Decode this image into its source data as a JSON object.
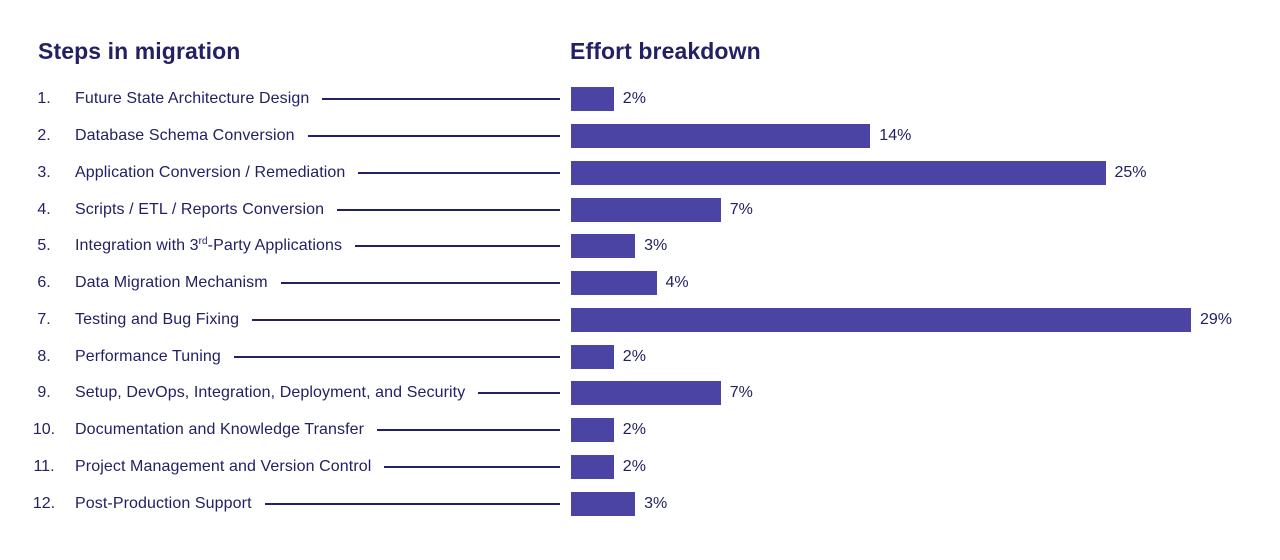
{
  "left_header": "Steps in migration",
  "right_header": "Effort breakdown",
  "colors": {
    "ink": "#232063",
    "bar": "#4C44A5",
    "background": "#FFFFFF"
  },
  "steps": [
    {
      "num": "1.",
      "pre": "Future State Architecture Design",
      "sup": "",
      "post": ""
    },
    {
      "num": "2.",
      "pre": "Database Schema Conversion",
      "sup": "",
      "post": ""
    },
    {
      "num": "3.",
      "pre": "Application Conversion / Remediation",
      "sup": "",
      "post": ""
    },
    {
      "num": "4.",
      "pre": "Scripts / ETL / Reports Conversion",
      "sup": "",
      "post": ""
    },
    {
      "num": "5.",
      "pre": "Integration with 3",
      "sup": "rd",
      "post": "-Party Applications"
    },
    {
      "num": "6.",
      "pre": "Data Migration Mechanism",
      "sup": "",
      "post": ""
    },
    {
      "num": "7.",
      "pre": "Testing and Bug Fixing",
      "sup": "",
      "post": ""
    },
    {
      "num": "8.",
      "pre": "Performance Tuning",
      "sup": "",
      "post": ""
    },
    {
      "num": "9.",
      "pre": "Setup, DevOps, Integration, Deployment, and Security",
      "sup": "",
      "post": ""
    },
    {
      "num": "10.",
      "pre": "Documentation and Knowledge Transfer",
      "sup": "",
      "post": ""
    },
    {
      "num": "11.",
      "pre": "Project Management and Version Control",
      "sup": "",
      "post": ""
    },
    {
      "num": "12.",
      "pre": "Post-Production Support",
      "sup": "",
      "post": ""
    }
  ],
  "chart_data": {
    "type": "bar",
    "orientation": "horizontal",
    "title": "Effort breakdown",
    "list_title": "Steps in migration",
    "categories": [
      "Future State Architecture Design",
      "Database Schema Conversion",
      "Application Conversion / Remediation",
      "Scripts / ETL / Reports Conversion",
      "Integration with 3rd-Party Applications",
      "Data Migration Mechanism",
      "Testing and Bug Fixing",
      "Performance Tuning",
      "Setup, DevOps, Integration, Deployment, and Security",
      "Documentation and Knowledge Transfer",
      "Project Management and Version Control",
      "Post-Production Support"
    ],
    "values": [
      2,
      14,
      25,
      7,
      3,
      4,
      29,
      2,
      7,
      2,
      2,
      3
    ],
    "value_labels": [
      "2%",
      "14%",
      "25%",
      "7%",
      "3%",
      "4%",
      "29%",
      "2%",
      "7%",
      "2%",
      "2%",
      "3%"
    ],
    "unit": "%",
    "xlim": [
      0,
      29
    ],
    "grid": false,
    "legend": false,
    "bar_color": "#4C44A5",
    "data_labels_position": "right-of-bar"
  }
}
